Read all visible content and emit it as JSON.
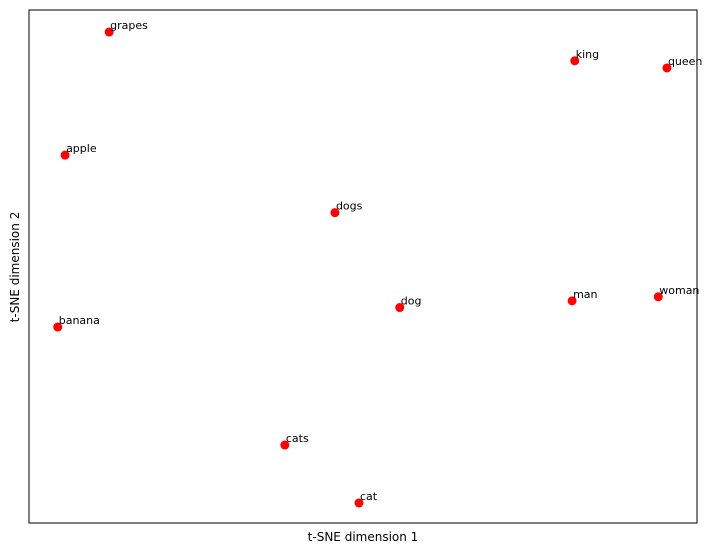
{
  "chart_data": {
    "type": "scatter",
    "xlabel": "t-SNE dimension 1",
    "ylabel": "t-SNE dimension 2",
    "xlim": [
      0,
      100
    ],
    "ylim": [
      0,
      100
    ],
    "color": "#ff0000",
    "labels": [
      "grapes",
      "king",
      "queen",
      "apple",
      "dogs",
      "banana",
      "dog",
      "man",
      "woman",
      "cats",
      "cat"
    ],
    "x": [
      12.0,
      81.7,
      95.5,
      5.4,
      45.8,
      4.3,
      55.5,
      81.3,
      94.2,
      38.3,
      49.4
    ],
    "y": [
      95.7,
      90.1,
      88.7,
      71.7,
      60.5,
      38.2,
      42.0,
      43.3,
      44.1,
      15.2,
      3.9
    ]
  }
}
